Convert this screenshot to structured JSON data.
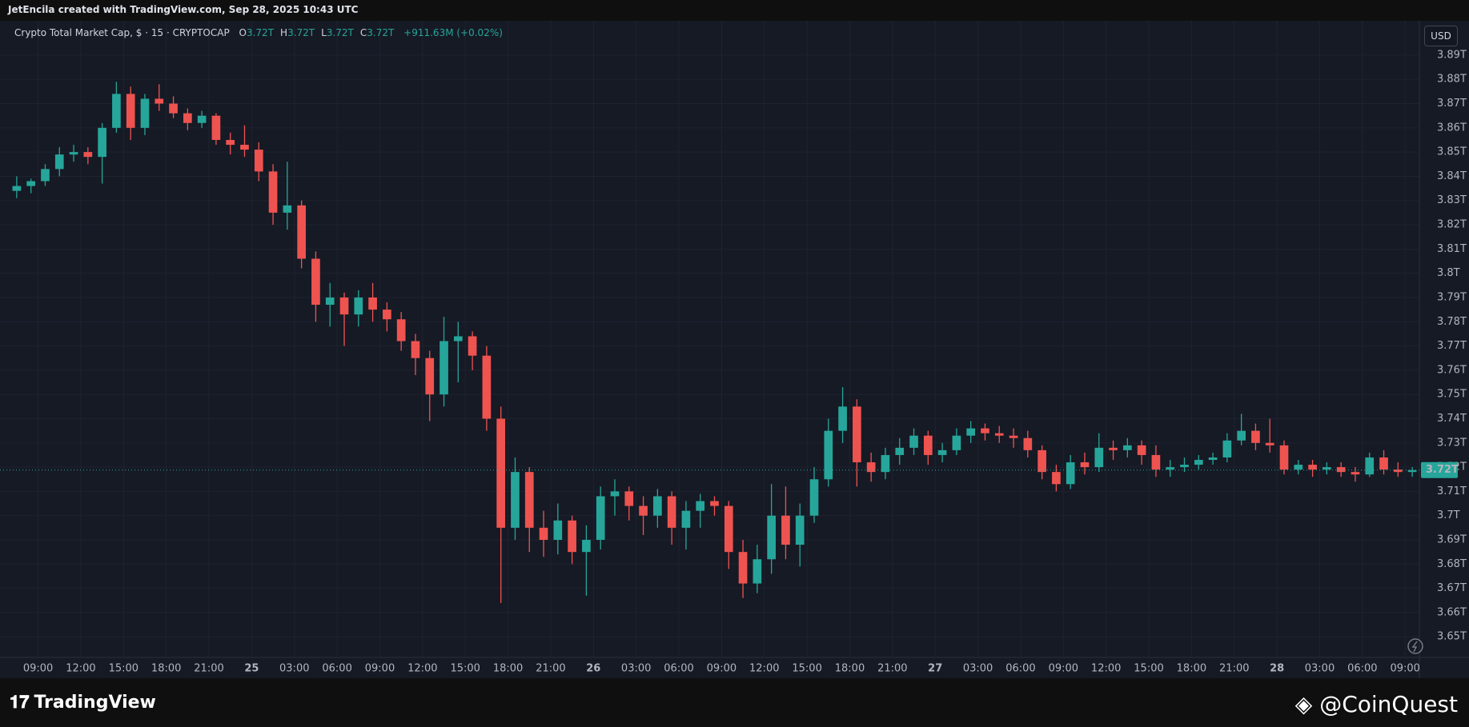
{
  "header": "JetEncila created with TradingView.com, Sep 28, 2025 10:43 UTC",
  "brand": "TradingView",
  "watermark": "@CoinQuest",
  "chart_data": {
    "type": "candlestick",
    "title": "Crypto Total Market Cap, $ · 15 · CRYPTOCAP",
    "legend_values": [
      {
        "key": "O",
        "value": "3.72T"
      },
      {
        "key": "H",
        "value": "3.72T"
      },
      {
        "key": "L",
        "value": "3.72T"
      },
      {
        "key": "C",
        "value": "3.72T"
      }
    ],
    "change": "+911.63M (+0.02%)",
    "currency": "USD",
    "up_color": "#26a69a",
    "down_color": "#ef5350",
    "grid": true,
    "last_price": {
      "value": 3.7188,
      "label": "3.72T"
    },
    "xlim": [
      0,
      99
    ],
    "xticks": [
      {
        "value": 2,
        "label": "09:00"
      },
      {
        "value": 5,
        "label": "12:00"
      },
      {
        "value": 8,
        "label": "15:00"
      },
      {
        "value": 11,
        "label": "18:00"
      },
      {
        "value": 14,
        "label": "21:00"
      },
      {
        "value": 17,
        "label": "25"
      },
      {
        "value": 20,
        "label": "03:00"
      },
      {
        "value": 23,
        "label": "06:00"
      },
      {
        "value": 26,
        "label": "09:00"
      },
      {
        "value": 29,
        "label": "12:00"
      },
      {
        "value": 32,
        "label": "15:00"
      },
      {
        "value": 35,
        "label": "18:00"
      },
      {
        "value": 38,
        "label": "21:00"
      },
      {
        "value": 41,
        "label": "26"
      },
      {
        "value": 44,
        "label": "03:00"
      },
      {
        "value": 47,
        "label": "06:00"
      },
      {
        "value": 50,
        "label": "09:00"
      },
      {
        "value": 53,
        "label": "12:00"
      },
      {
        "value": 56,
        "label": "15:00"
      },
      {
        "value": 59,
        "label": "18:00"
      },
      {
        "value": 62,
        "label": "21:00"
      },
      {
        "value": 65,
        "label": "27"
      },
      {
        "value": 68,
        "label": "03:00"
      },
      {
        "value": 71,
        "label": "06:00"
      },
      {
        "value": 74,
        "label": "09:00"
      },
      {
        "value": 77,
        "label": "12:00"
      },
      {
        "value": 80,
        "label": "15:00"
      },
      {
        "value": 83,
        "label": "18:00"
      },
      {
        "value": 86,
        "label": "21:00"
      },
      {
        "value": 89,
        "label": "28"
      },
      {
        "value": 92,
        "label": "03:00"
      },
      {
        "value": 95,
        "label": "06:00"
      },
      {
        "value": 98,
        "label": "09:00"
      }
    ],
    "ylim": [
      3.6415,
      3.9035
    ],
    "yticks": [
      {
        "value": 3.65,
        "label": "3.65T"
      },
      {
        "value": 3.66,
        "label": "3.66T"
      },
      {
        "value": 3.67,
        "label": "3.67T"
      },
      {
        "value": 3.68,
        "label": "3.68T"
      },
      {
        "value": 3.69,
        "label": "3.69T"
      },
      {
        "value": 3.7,
        "label": "3.7T"
      },
      {
        "value": 3.71,
        "label": "3.71T"
      },
      {
        "value": 3.72,
        "label": "3.72T"
      },
      {
        "value": 3.73,
        "label": "3.73T"
      },
      {
        "value": 3.74,
        "label": "3.74T"
      },
      {
        "value": 3.75,
        "label": "3.75T"
      },
      {
        "value": 3.76,
        "label": "3.76T"
      },
      {
        "value": 3.77,
        "label": "3.77T"
      },
      {
        "value": 3.78,
        "label": "3.78T"
      },
      {
        "value": 3.79,
        "label": "3.79T"
      },
      {
        "value": 3.8,
        "label": "3.8T"
      },
      {
        "value": 3.81,
        "label": "3.81T"
      },
      {
        "value": 3.82,
        "label": "3.82T"
      },
      {
        "value": 3.83,
        "label": "3.83T"
      },
      {
        "value": 3.84,
        "label": "3.84T"
      },
      {
        "value": 3.85,
        "label": "3.85T"
      },
      {
        "value": 3.86,
        "label": "3.86T"
      },
      {
        "value": 3.87,
        "label": "3.87T"
      },
      {
        "value": 3.88,
        "label": "3.88T"
      },
      {
        "value": 3.89,
        "label": "3.89T"
      }
    ],
    "open": [
      3.834,
      3.836,
      3.838,
      3.843,
      3.849,
      3.85,
      3.848,
      3.86,
      3.874,
      3.86,
      3.872,
      3.87,
      3.866,
      3.862,
      3.865,
      3.855,
      3.853,
      3.851,
      3.842,
      3.825,
      3.828,
      3.806,
      3.787,
      3.79,
      3.783,
      3.79,
      3.785,
      3.781,
      3.772,
      3.765,
      3.75,
      3.772,
      3.774,
      3.766,
      3.74,
      3.695,
      3.718,
      3.695,
      3.69,
      3.698,
      3.685,
      3.69,
      3.708,
      3.71,
      3.704,
      3.7,
      3.708,
      3.695,
      3.702,
      3.706,
      3.704,
      3.685,
      3.672,
      3.682,
      3.7,
      3.688,
      3.7,
      3.715,
      3.735,
      3.745,
      3.722,
      3.718,
      3.725,
      3.728,
      3.733,
      3.725,
      3.727,
      3.733,
      3.736,
      3.734,
      3.733,
      3.732,
      3.727,
      3.718,
      3.713,
      3.722,
      3.72,
      3.728,
      3.727,
      3.729,
      3.725,
      3.719,
      3.72,
      3.721,
      3.723,
      3.724,
      3.731,
      3.735,
      3.73,
      3.729,
      3.719,
      3.721,
      3.719,
      3.72,
      3.718,
      3.717,
      3.724,
      3.719,
      3.718
    ],
    "high": [
      3.84,
      3.839,
      3.845,
      3.852,
      3.853,
      3.852,
      3.862,
      3.879,
      3.877,
      3.874,
      3.878,
      3.873,
      3.868,
      3.867,
      3.866,
      3.858,
      3.861,
      3.854,
      3.845,
      3.846,
      3.83,
      3.809,
      3.796,
      3.792,
      3.793,
      3.796,
      3.788,
      3.784,
      3.775,
      3.768,
      3.782,
      3.78,
      3.776,
      3.77,
      3.745,
      3.724,
      3.72,
      3.702,
      3.705,
      3.7,
      3.696,
      3.712,
      3.715,
      3.712,
      3.708,
      3.711,
      3.71,
      3.706,
      3.709,
      3.708,
      3.706,
      3.69,
      3.688,
      3.713,
      3.712,
      3.705,
      3.72,
      3.74,
      3.753,
      3.748,
      3.726,
      3.728,
      3.732,
      3.736,
      3.735,
      3.73,
      3.736,
      3.739,
      3.738,
      3.737,
      3.736,
      3.735,
      3.729,
      3.721,
      3.725,
      3.726,
      3.734,
      3.731,
      3.732,
      3.731,
      3.729,
      3.723,
      3.724,
      3.725,
      3.726,
      3.734,
      3.742,
      3.738,
      3.74,
      3.731,
      3.723,
      3.723,
      3.722,
      3.722,
      3.72,
      3.726,
      3.727,
      3.722,
      3.72
    ],
    "low": [
      3.831,
      3.833,
      3.836,
      3.84,
      3.846,
      3.845,
      3.837,
      3.858,
      3.855,
      3.857,
      3.867,
      3.864,
      3.859,
      3.86,
      3.853,
      3.849,
      3.848,
      3.838,
      3.82,
      3.818,
      3.802,
      3.78,
      3.778,
      3.77,
      3.778,
      3.78,
      3.776,
      3.768,
      3.758,
      3.739,
      3.745,
      3.755,
      3.76,
      3.735,
      3.664,
      3.69,
      3.685,
      3.683,
      3.684,
      3.68,
      3.667,
      3.686,
      3.7,
      3.698,
      3.692,
      3.695,
      3.688,
      3.686,
      3.695,
      3.7,
      3.678,
      3.666,
      3.668,
      3.676,
      3.682,
      3.679,
      3.697,
      3.712,
      3.73,
      3.712,
      3.714,
      3.715,
      3.721,
      3.725,
      3.721,
      3.722,
      3.725,
      3.73,
      3.731,
      3.73,
      3.728,
      3.724,
      3.715,
      3.71,
      3.711,
      3.717,
      3.718,
      3.723,
      3.724,
      3.721,
      3.716,
      3.716,
      3.718,
      3.719,
      3.721,
      3.722,
      3.729,
      3.727,
      3.726,
      3.717,
      3.717,
      3.716,
      3.717,
      3.716,
      3.714,
      3.716,
      3.717,
      3.716,
      3.716
    ],
    "close": [
      3.836,
      3.838,
      3.843,
      3.849,
      3.85,
      3.848,
      3.86,
      3.874,
      3.86,
      3.872,
      3.87,
      3.866,
      3.862,
      3.865,
      3.855,
      3.853,
      3.851,
      3.842,
      3.825,
      3.828,
      3.806,
      3.787,
      3.79,
      3.783,
      3.79,
      3.785,
      3.781,
      3.772,
      3.765,
      3.75,
      3.772,
      3.774,
      3.766,
      3.74,
      3.695,
      3.718,
      3.695,
      3.69,
      3.698,
      3.685,
      3.69,
      3.708,
      3.71,
      3.704,
      3.7,
      3.708,
      3.695,
      3.702,
      3.706,
      3.704,
      3.685,
      3.672,
      3.682,
      3.7,
      3.688,
      3.7,
      3.715,
      3.735,
      3.745,
      3.722,
      3.718,
      3.725,
      3.728,
      3.733,
      3.725,
      3.727,
      3.733,
      3.736,
      3.734,
      3.733,
      3.732,
      3.727,
      3.718,
      3.713,
      3.722,
      3.72,
      3.728,
      3.727,
      3.729,
      3.725,
      3.719,
      3.72,
      3.721,
      3.723,
      3.724,
      3.731,
      3.735,
      3.73,
      3.729,
      3.719,
      3.721,
      3.719,
      3.72,
      3.718,
      3.717,
      3.724,
      3.719,
      3.718,
      3.7188
    ]
  }
}
